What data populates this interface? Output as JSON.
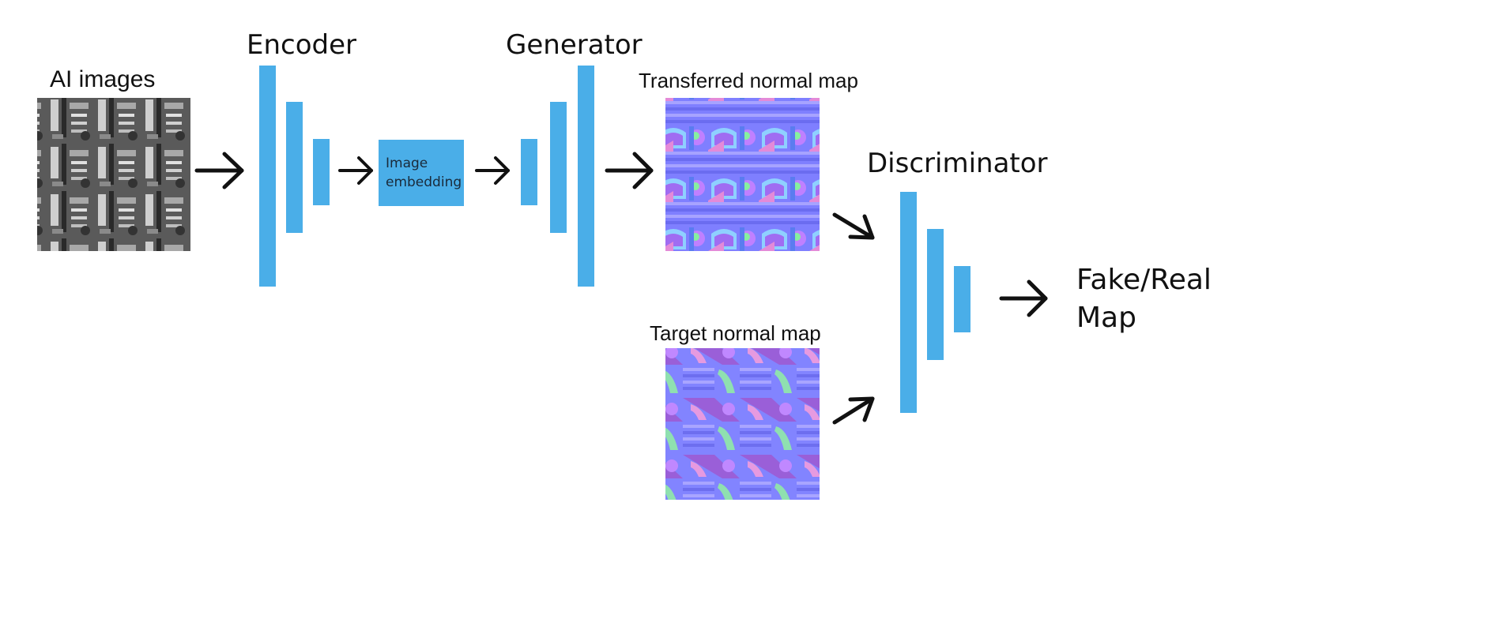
{
  "labels": {
    "ai_images": "AI images",
    "encoder": "Encoder",
    "generator": "Generator",
    "transferred": "Transferred normal map",
    "target": "Target normal map",
    "discriminator": "Discriminator",
    "embedding_line1": "Image",
    "embedding_line2": "embedding",
    "output_line1": "Fake/Real",
    "output_line2": "Map"
  },
  "images": {
    "ai_images": "grayscale-texture",
    "transferred": "normal-map-texture",
    "target": "normal-map-texture"
  },
  "colors": {
    "layer_blue": "#4aaee8",
    "arrow": "#111111",
    "text": "#111111",
    "normal_base": "#7f7fff"
  }
}
